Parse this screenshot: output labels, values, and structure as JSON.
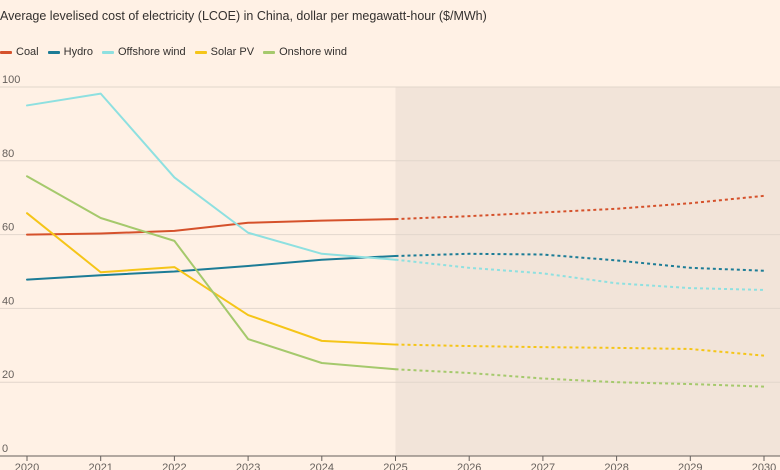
{
  "chart_data": {
    "type": "line",
    "title": "Average levelised cost of electricity (LCOE) in China, dollar per megawatt-hour ($/MWh)",
    "xlabel": "",
    "ylabel": "",
    "x": [
      2020,
      2021,
      2022,
      2023,
      2024,
      2025,
      2026,
      2027,
      2028,
      2029,
      2030
    ],
    "xlim": [
      2020,
      2030
    ],
    "ylim": [
      0,
      100
    ],
    "yticks": [
      0,
      20,
      40,
      60,
      80,
      100
    ],
    "forecast_from": 2025,
    "legend_position": "top-left",
    "grid": "horizontal",
    "series": [
      {
        "name": "Coal",
        "color": "#d5512b",
        "values": [
          60,
          60.3,
          61,
          63.2,
          63.8,
          64.2,
          65,
          66,
          67,
          68.5,
          70.5
        ]
      },
      {
        "name": "Hydro",
        "color": "#1c7c96",
        "values": [
          47.8,
          49,
          50,
          51.5,
          53.2,
          54.2,
          54.8,
          54.6,
          53,
          51,
          50.2
        ]
      },
      {
        "name": "Offshore wind",
        "color": "#8ee0e0",
        "values": [
          95,
          98.2,
          75.5,
          60.5,
          54.8,
          53.2,
          51,
          49.5,
          46.8,
          45.5,
          45
        ]
      },
      {
        "name": "Solar PV",
        "color": "#f5c518",
        "values": [
          65.8,
          49.8,
          51.2,
          38.2,
          31.2,
          30.2,
          29.8,
          29.5,
          29.3,
          29,
          27.2
        ]
      },
      {
        "name": "Onshore wind",
        "color": "#a5c96c",
        "values": [
          75.8,
          64.5,
          58.3,
          31.7,
          25.2,
          23.5,
          22.5,
          21,
          20,
          19.5,
          18.8
        ]
      }
    ]
  },
  "colors": {
    "background": "#fff1e5",
    "forecast_shade": "#f2e4d9",
    "gridline": "#e2d6cc",
    "baseline": "#66605c"
  }
}
